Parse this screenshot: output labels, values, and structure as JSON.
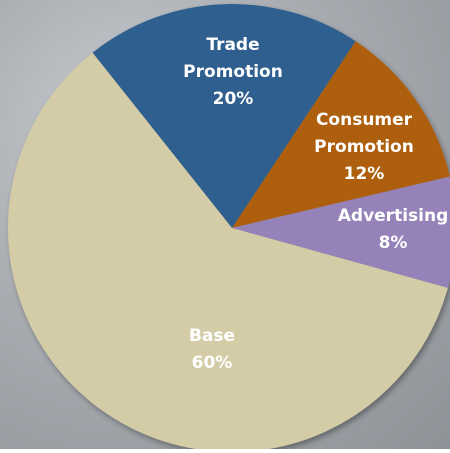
{
  "chart_data": {
    "type": "pie",
    "categories": [
      "Trade Promotion",
      "Consumer Promotion",
      "Advertising",
      "Base"
    ],
    "values": [
      20,
      12,
      8,
      60
    ],
    "value_labels": [
      "20%",
      "12%",
      "8%",
      "60%"
    ],
    "colors": [
      "#2f5f8f",
      "#ad5f11",
      "#9482b9",
      "#d4cba7"
    ]
  }
}
